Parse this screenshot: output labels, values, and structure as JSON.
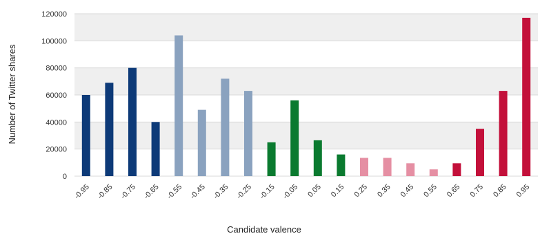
{
  "chart_data": {
    "type": "bar",
    "title": "",
    "xlabel": "Candidate valence",
    "ylabel": "Number of Twitter shares",
    "ylim": [
      0,
      120000
    ],
    "yticks": [
      "0",
      "20000",
      "40000",
      "60000",
      "80000",
      "100000",
      "120000"
    ],
    "grid": true,
    "legend": "none",
    "categories": [
      "-0.95",
      "-0.85",
      "-0.75",
      "-0.65",
      "-0.55",
      "-0.45",
      "-0.35",
      "-0.25",
      "-0.15",
      "-0.05",
      "0.05",
      "0.15",
      "0.25",
      "0.35",
      "0.45",
      "0.55",
      "0.65",
      "0.75",
      "0.85",
      "0.95"
    ],
    "values": [
      60000,
      69000,
      80000,
      40000,
      104000,
      49000,
      72000,
      63000,
      25000,
      56000,
      26500,
      16000,
      13500,
      13500,
      9500,
      5000,
      9500,
      35000,
      63000,
      117000
    ],
    "bar_colors": [
      "#0d3a78",
      "#0d3a78",
      "#0d3a78",
      "#0d3a78",
      "#8aa2bf",
      "#8aa2bf",
      "#8aa2bf",
      "#8aa2bf",
      "#0a7a2f",
      "#0a7a2f",
      "#0a7a2f",
      "#0a7a2f",
      "#e58fa3",
      "#e58fa3",
      "#e58fa3",
      "#e58fa3",
      "#c3103a",
      "#c3103a",
      "#c3103a",
      "#c3103a"
    ],
    "band_color": "#efefef",
    "grid_color": "#d8d8d8"
  }
}
